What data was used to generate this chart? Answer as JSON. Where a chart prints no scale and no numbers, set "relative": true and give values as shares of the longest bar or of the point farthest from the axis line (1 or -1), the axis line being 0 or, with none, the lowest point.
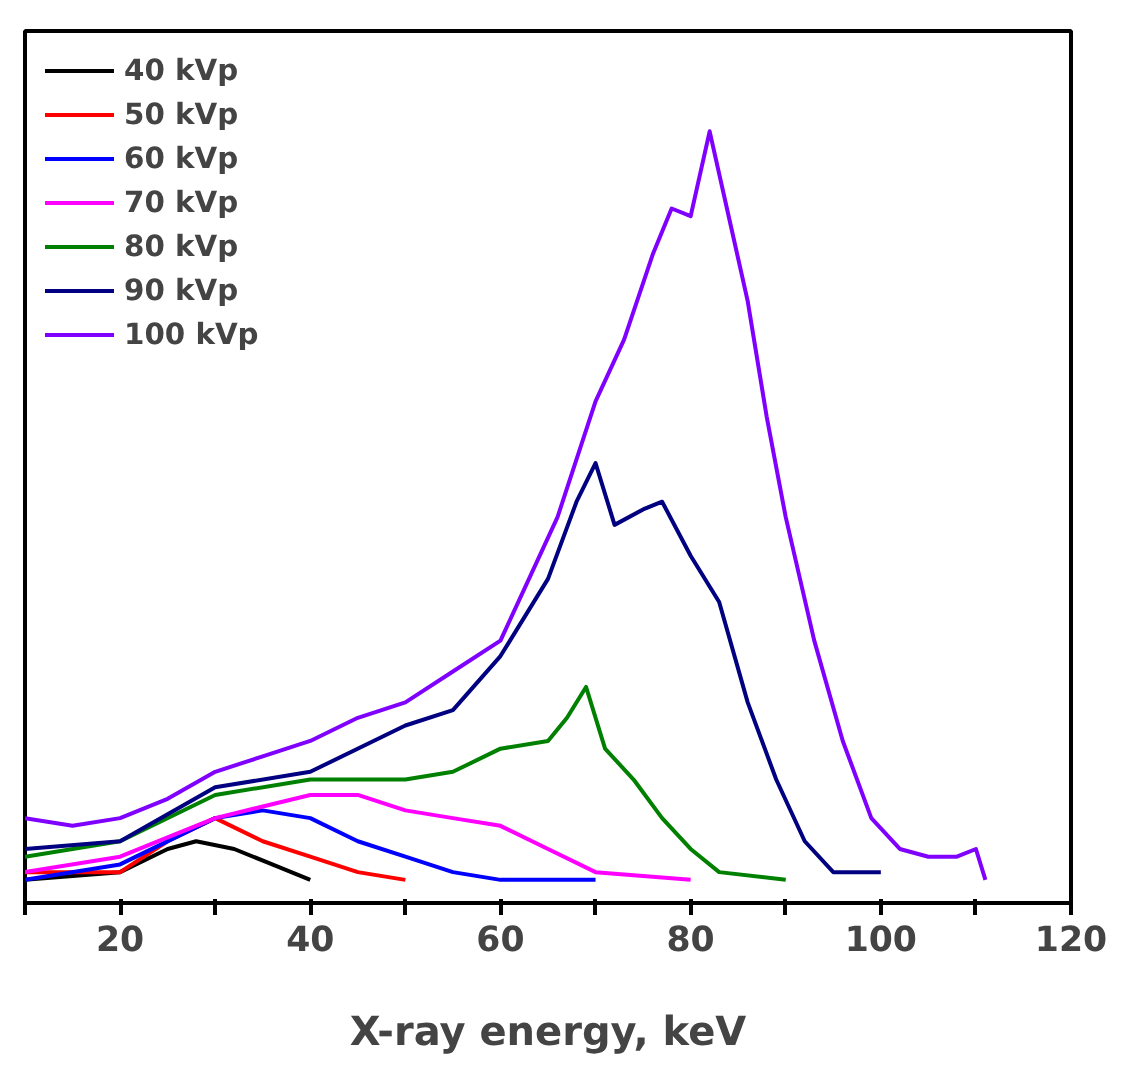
{
  "chart_data": {
    "type": "line",
    "xlabel": "X-ray energy, keV",
    "relative": true,
    "xlim": [
      10,
      120
    ],
    "xticks": [
      {
        "value": 10,
        "label": null
      },
      20,
      {
        "value": 30,
        "label": null
      },
      40,
      {
        "value": 50,
        "label": null
      },
      60,
      {
        "value": 70,
        "label": null
      },
      80,
      {
        "value": 90,
        "label": null
      },
      100,
      {
        "value": 110,
        "label": null
      },
      120
    ],
    "tick_labels": "x",
    "grid": false,
    "legend": "top left",
    "marker": "none",
    "line_style": "solid",
    "series": [
      {
        "name": "40 kVp",
        "color": "#000000",
        "x": [
          10,
          20,
          25,
          28,
          32,
          36,
          40
        ],
        "values": [
          0.03,
          0.04,
          0.07,
          0.08,
          0.07,
          0.05,
          0.03
        ]
      },
      {
        "name": "50 kVp",
        "color": "#ff0000",
        "x": [
          10,
          20,
          25,
          30,
          35,
          40,
          45,
          50
        ],
        "values": [
          0.04,
          0.04,
          0.08,
          0.11,
          0.08,
          0.06,
          0.04,
          0.03
        ]
      },
      {
        "name": "60 kVp",
        "color": "#0000ff",
        "x": [
          10,
          20,
          30,
          35,
          40,
          45,
          50,
          55,
          60,
          70
        ],
        "values": [
          0.03,
          0.05,
          0.11,
          0.12,
          0.11,
          0.08,
          0.06,
          0.04,
          0.03,
          0.03
        ]
      },
      {
        "name": "70 kVp",
        "color": "#ff00ff",
        "x": [
          10,
          20,
          30,
          40,
          45,
          50,
          55,
          60,
          65,
          70,
          80
        ],
        "values": [
          0.04,
          0.06,
          0.11,
          0.14,
          0.14,
          0.12,
          0.11,
          0.1,
          0.07,
          0.04,
          0.03
        ]
      },
      {
        "name": "80 kVp",
        "color": "#008000",
        "x": [
          10,
          20,
          30,
          40,
          50,
          55,
          60,
          65,
          67,
          69,
          71,
          74,
          77,
          80,
          83,
          90
        ],
        "values": [
          0.06,
          0.08,
          0.14,
          0.16,
          0.16,
          0.17,
          0.2,
          0.21,
          0.24,
          0.28,
          0.2,
          0.16,
          0.11,
          0.07,
          0.04,
          0.03
        ]
      },
      {
        "name": "90 kVp",
        "color": "#000080",
        "x": [
          10,
          20,
          30,
          40,
          50,
          55,
          60,
          65,
          68,
          70,
          72,
          75,
          77,
          80,
          83,
          86,
          89,
          92,
          95,
          100
        ],
        "values": [
          0.07,
          0.08,
          0.15,
          0.17,
          0.23,
          0.25,
          0.32,
          0.42,
          0.52,
          0.57,
          0.49,
          0.51,
          0.52,
          0.45,
          0.39,
          0.26,
          0.16,
          0.08,
          0.04,
          0.04
        ]
      },
      {
        "name": "100 kVp",
        "color": "#8000ff",
        "x": [
          10,
          15,
          20,
          25,
          30,
          35,
          40,
          45,
          50,
          55,
          60,
          63,
          66,
          70,
          73,
          76,
          78,
          80,
          82,
          84,
          86,
          88,
          90,
          93,
          96,
          99,
          102,
          105,
          108,
          110,
          111
        ],
        "values": [
          0.11,
          0.1,
          0.11,
          0.135,
          0.17,
          0.19,
          0.21,
          0.24,
          0.26,
          0.3,
          0.34,
          0.42,
          0.5,
          0.65,
          0.73,
          0.84,
          0.9,
          0.89,
          1.0,
          0.89,
          0.78,
          0.63,
          0.5,
          0.34,
          0.21,
          0.11,
          0.07,
          0.06,
          0.06,
          0.07,
          0.03
        ]
      }
    ]
  }
}
